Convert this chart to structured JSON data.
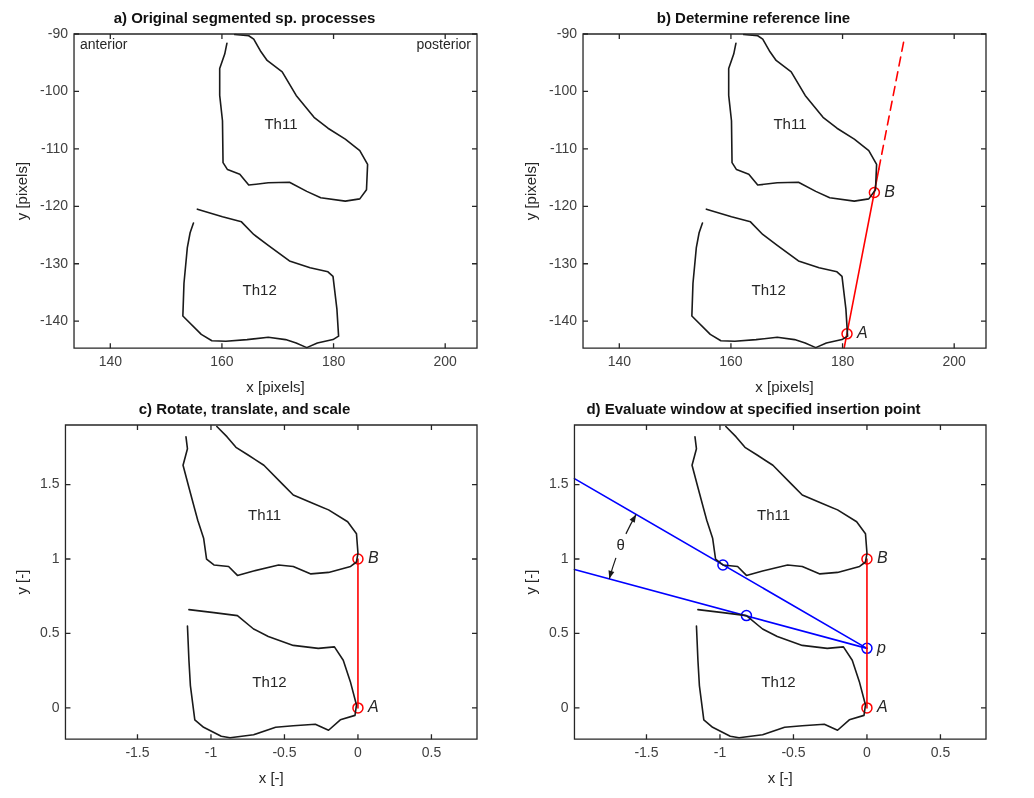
{
  "chart_data": [
    {
      "type": "line",
      "title": "a) Original segmented sp. processes",
      "xlabel": "x [pixels]",
      "ylabel": "y [pixels]",
      "xlim": [
        133.5,
        205.7
      ],
      "ylim": [
        -144.7,
        -90
      ],
      "xticks": [
        140,
        160,
        180,
        200
      ],
      "yticks": [
        -140,
        -130,
        -120,
        -110,
        -100,
        -90
      ],
      "series": [
        {
          "name": "Th11",
          "color": "#1a1a1a",
          "x": [
            160.9,
            160.5,
            159.6,
            159.6,
            160.1,
            160.2,
            161.0,
            163.2,
            164.8,
            168.3,
            172.1,
            175.2,
            177.7,
            182.1,
            184.7,
            185.9,
            186.1,
            184.7,
            182.1,
            179.0,
            176.5,
            173.3,
            170.8,
            168.1,
            167.0,
            165.7,
            164.8,
            162.3
          ],
          "values": [
            -91.6,
            -93.5,
            -96.0,
            -100.7,
            -105.1,
            -112.4,
            -113.6,
            -114.4,
            -116.3,
            -115.9,
            -115.8,
            -117.4,
            -118.5,
            -119.1,
            -118.7,
            -117.1,
            -112.7,
            -110.3,
            -108.3,
            -106.4,
            -104.5,
            -100.7,
            -96.6,
            -94.6,
            -93.1,
            -90.9,
            -90.3,
            -90.1
          ]
        },
        {
          "name": "Th12",
          "color": "#1a1a1a",
          "x": [
            155.6,
            160.1,
            163.5,
            165.7,
            168.3,
            172.1,
            175.8,
            179.0,
            179.9,
            180.6,
            180.9,
            179.9,
            177.1,
            175.2,
            173.3,
            171.4,
            168.3,
            164.5,
            160.7,
            158.2,
            156.3,
            153.0,
            153.2,
            153.8,
            154.3,
            154.9
          ],
          "values": [
            -120.5,
            -121.8,
            -122.7,
            -124.9,
            -126.8,
            -129.5,
            -130.7,
            -131.4,
            -132.2,
            -137.9,
            -142.6,
            -143.2,
            -143.8,
            -144.6,
            -143.8,
            -143.2,
            -142.8,
            -143.2,
            -143.5,
            -143.4,
            -142.3,
            -139.1,
            -133.4,
            -127.2,
            -124.6,
            -122.9
          ]
        }
      ],
      "annotations": [
        "anterior",
        "posterior"
      ]
    },
    {
      "type": "line",
      "title": "b) Determine reference line",
      "xlabel": "x [pixels]",
      "ylabel": "y [pixels]",
      "xlim": [
        133.5,
        205.7
      ],
      "ylim": [
        -144.7,
        -90
      ],
      "xticks": [
        140,
        160,
        180,
        200
      ],
      "yticks": [
        -140,
        -130,
        -120,
        -110,
        -100,
        -90
      ],
      "series": [
        {
          "name": "Th11",
          "color": "#1a1a1a",
          "x": [
            160.9,
            160.5,
            159.6,
            159.6,
            160.1,
            160.2,
            161.0,
            163.2,
            164.8,
            168.3,
            172.1,
            175.2,
            177.7,
            182.1,
            184.7,
            185.9,
            186.1,
            184.7,
            182.1,
            179.0,
            176.5,
            173.3,
            170.8,
            168.1,
            167.0,
            165.7,
            164.8,
            162.3
          ],
          "values": [
            -91.6,
            -93.5,
            -96.0,
            -100.7,
            -105.1,
            -112.4,
            -113.6,
            -114.4,
            -116.3,
            -115.9,
            -115.8,
            -117.4,
            -118.5,
            -119.1,
            -118.7,
            -117.1,
            -112.7,
            -110.3,
            -108.3,
            -106.4,
            -104.5,
            -100.7,
            -96.6,
            -94.6,
            -93.1,
            -90.9,
            -90.3,
            -90.1
          ]
        },
        {
          "name": "Th12",
          "color": "#1a1a1a",
          "x": [
            155.6,
            160.1,
            163.5,
            165.7,
            168.3,
            172.1,
            175.8,
            179.0,
            179.9,
            180.6,
            180.9,
            179.9,
            177.1,
            175.2,
            173.3,
            171.4,
            168.3,
            164.5,
            160.7,
            158.2,
            156.3,
            153.0,
            153.2,
            153.8,
            154.3,
            154.9
          ],
          "values": [
            -120.5,
            -121.8,
            -122.7,
            -124.9,
            -126.8,
            -129.5,
            -130.7,
            -131.4,
            -132.2,
            -137.9,
            -142.6,
            -143.2,
            -143.8,
            -144.6,
            -143.8,
            -143.2,
            -142.8,
            -143.2,
            -143.5,
            -143.4,
            -142.3,
            -139.1,
            -133.4,
            -127.2,
            -124.6,
            -122.9
          ]
        },
        {
          "color": "#ff0000",
          "x": [
            180.3,
            186.5
          ],
          "values": [
            -144.6,
            -113.5
          ]
        },
        {
          "color": "#ff0000",
          "line_style": "dashed",
          "x": [
            186.5,
            191.0
          ],
          "values": [
            -113.5,
            -91.1
          ]
        },
        {
          "type": "scatter",
          "marker": "circle",
          "color": "#ff0000",
          "x": [
            180.8,
            185.7
          ],
          "values": [
            -142.2,
            -117.6
          ]
        }
      ],
      "annotations": [
        {
          "text": "A",
          "x": 180.8,
          "y": -142.2
        },
        {
          "text": "B",
          "x": 185.7,
          "y": -117.6
        }
      ]
    },
    {
      "type": "line",
      "title": "c) Rotate, translate, and scale",
      "xlabel": "x [-]",
      "ylabel": "y [-]",
      "xlim": [
        -1.99,
        0.81
      ],
      "ylim": [
        -0.21,
        1.9
      ],
      "xticks": [
        -1.5,
        -1,
        -0.5,
        0,
        0.5
      ],
      "yticks": [
        0,
        0.5,
        1,
        1.5
      ],
      "series": [
        {
          "name": "Th11",
          "color": "#1a1a1a",
          "x": [
            -1.17,
            -1.16,
            -1.19,
            -1.15,
            -1.09,
            -1.05,
            -1.03,
            -0.98,
            -0.88,
            -0.82,
            -0.71,
            -0.54,
            -0.44,
            -0.32,
            -0.2,
            -0.05,
            -0.01,
            0,
            -0.01,
            -0.07,
            -0.2,
            -0.32,
            -0.44,
            -0.51,
            -0.64,
            -0.75,
            -0.83,
            -0.89,
            -0.96
          ],
          "values": [
            1.82,
            1.74,
            1.63,
            1.48,
            1.26,
            1.14,
            1.0,
            0.96,
            0.95,
            0.89,
            0.92,
            0.96,
            0.95,
            0.9,
            0.91,
            0.95,
            0.98,
            1.04,
            1.17,
            1.25,
            1.33,
            1.38,
            1.43,
            1.5,
            1.63,
            1.7,
            1.75,
            1.82,
            1.89
          ]
        },
        {
          "name": "Th12",
          "color": "#1a1a1a",
          "x": [
            -1.15,
            -0.98,
            -0.82,
            -0.71,
            -0.61,
            -0.44,
            -0.27,
            -0.16,
            -0.1,
            -0.05,
            -0.01,
            -0.02,
            -0.12,
            -0.2,
            -0.29,
            -0.44,
            -0.56,
            -0.71,
            -0.87,
            -0.93,
            -1.05,
            -1.11,
            -1.14,
            -1.15,
            -1.16
          ],
          "values": [
            0.66,
            0.64,
            0.62,
            0.53,
            0.48,
            0.42,
            0.4,
            0.41,
            0.32,
            0.17,
            0.02,
            -0.05,
            -0.08,
            -0.15,
            -0.11,
            -0.12,
            -0.13,
            -0.18,
            -0.2,
            -0.19,
            -0.13,
            -0.08,
            0.15,
            0.32,
            0.55
          ]
        },
        {
          "color": "#ff0000",
          "x": [
            0,
            0
          ],
          "values": [
            0,
            1
          ]
        },
        {
          "type": "scatter",
          "marker": "circle",
          "color": "#ff0000",
          "x": [
            0,
            0
          ],
          "values": [
            0,
            1
          ]
        }
      ],
      "annotations": [
        {
          "text": "A",
          "x": 0,
          "y": 0
        },
        {
          "text": "B",
          "x": 0,
          "y": 1
        }
      ]
    },
    {
      "type": "line",
      "title": "d) Evaluate window at specified insertion point",
      "xlabel": "x [-]",
      "ylabel": "y [-]",
      "xlim": [
        -1.99,
        0.81
      ],
      "ylim": [
        -0.21,
        1.9
      ],
      "xticks": [
        -1.5,
        -1,
        -0.5,
        0,
        0.5
      ],
      "yticks": [
        0,
        0.5,
        1,
        1.5
      ],
      "series": [
        {
          "name": "Th11",
          "color": "#1a1a1a",
          "x": [
            -1.17,
            -1.16,
            -1.19,
            -1.15,
            -1.09,
            -1.05,
            -1.03,
            -0.98,
            -0.88,
            -0.82,
            -0.71,
            -0.54,
            -0.44,
            -0.32,
            -0.2,
            -0.05,
            -0.01,
            0,
            -0.01,
            -0.07,
            -0.2,
            -0.32,
            -0.44,
            -0.51,
            -0.64,
            -0.75,
            -0.83,
            -0.89,
            -0.96
          ],
          "values": [
            1.82,
            1.74,
            1.63,
            1.48,
            1.26,
            1.14,
            1.0,
            0.96,
            0.95,
            0.89,
            0.92,
            0.96,
            0.95,
            0.9,
            0.91,
            0.95,
            0.98,
            1.04,
            1.17,
            1.25,
            1.33,
            1.38,
            1.43,
            1.5,
            1.63,
            1.7,
            1.75,
            1.82,
            1.89
          ]
        },
        {
          "name": "Th12",
          "color": "#1a1a1a",
          "x": [
            -1.15,
            -0.98,
            -0.82,
            -0.71,
            -0.61,
            -0.44,
            -0.27,
            -0.16,
            -0.1,
            -0.05,
            -0.01,
            -0.02,
            -0.12,
            -0.2,
            -0.29,
            -0.44,
            -0.56,
            -0.71,
            -0.87,
            -0.93,
            -1.05,
            -1.11,
            -1.14,
            -1.15,
            -1.16
          ],
          "values": [
            0.66,
            0.64,
            0.62,
            0.53,
            0.48,
            0.42,
            0.4,
            0.41,
            0.32,
            0.17,
            0.02,
            -0.05,
            -0.08,
            -0.15,
            -0.11,
            -0.12,
            -0.13,
            -0.18,
            -0.2,
            -0.19,
            -0.13,
            -0.08,
            0.15,
            0.32,
            0.55
          ]
        },
        {
          "color": "#ff0000",
          "x": [
            0,
            0
          ],
          "values": [
            0,
            1
          ]
        },
        {
          "type": "scatter",
          "marker": "circle",
          "color": "#ff0000",
          "x": [
            0,
            0
          ],
          "values": [
            0,
            1
          ]
        },
        {
          "color": "#0000ff",
          "x": [
            0,
            -1.99
          ],
          "values": [
            0.4,
            1.54
          ]
        },
        {
          "color": "#0000ff",
          "x": [
            0,
            -1.99
          ],
          "values": [
            0.4,
            0.93
          ]
        },
        {
          "type": "scatter",
          "marker": "circle",
          "color": "#0000ff",
          "x": [
            -0.98,
            -0.82,
            0
          ],
          "values": [
            0.96,
            0.62,
            0.4
          ]
        }
      ],
      "annotations": [
        {
          "text": "θ",
          "x": -1.57,
          "y": 1.3
        },
        {
          "text": "A",
          "x": 0,
          "y": 0
        },
        {
          "text": "B",
          "x": 0,
          "y": 1
        },
        {
          "text": "p",
          "x": 0,
          "y": 0.4
        }
      ]
    }
  ]
}
